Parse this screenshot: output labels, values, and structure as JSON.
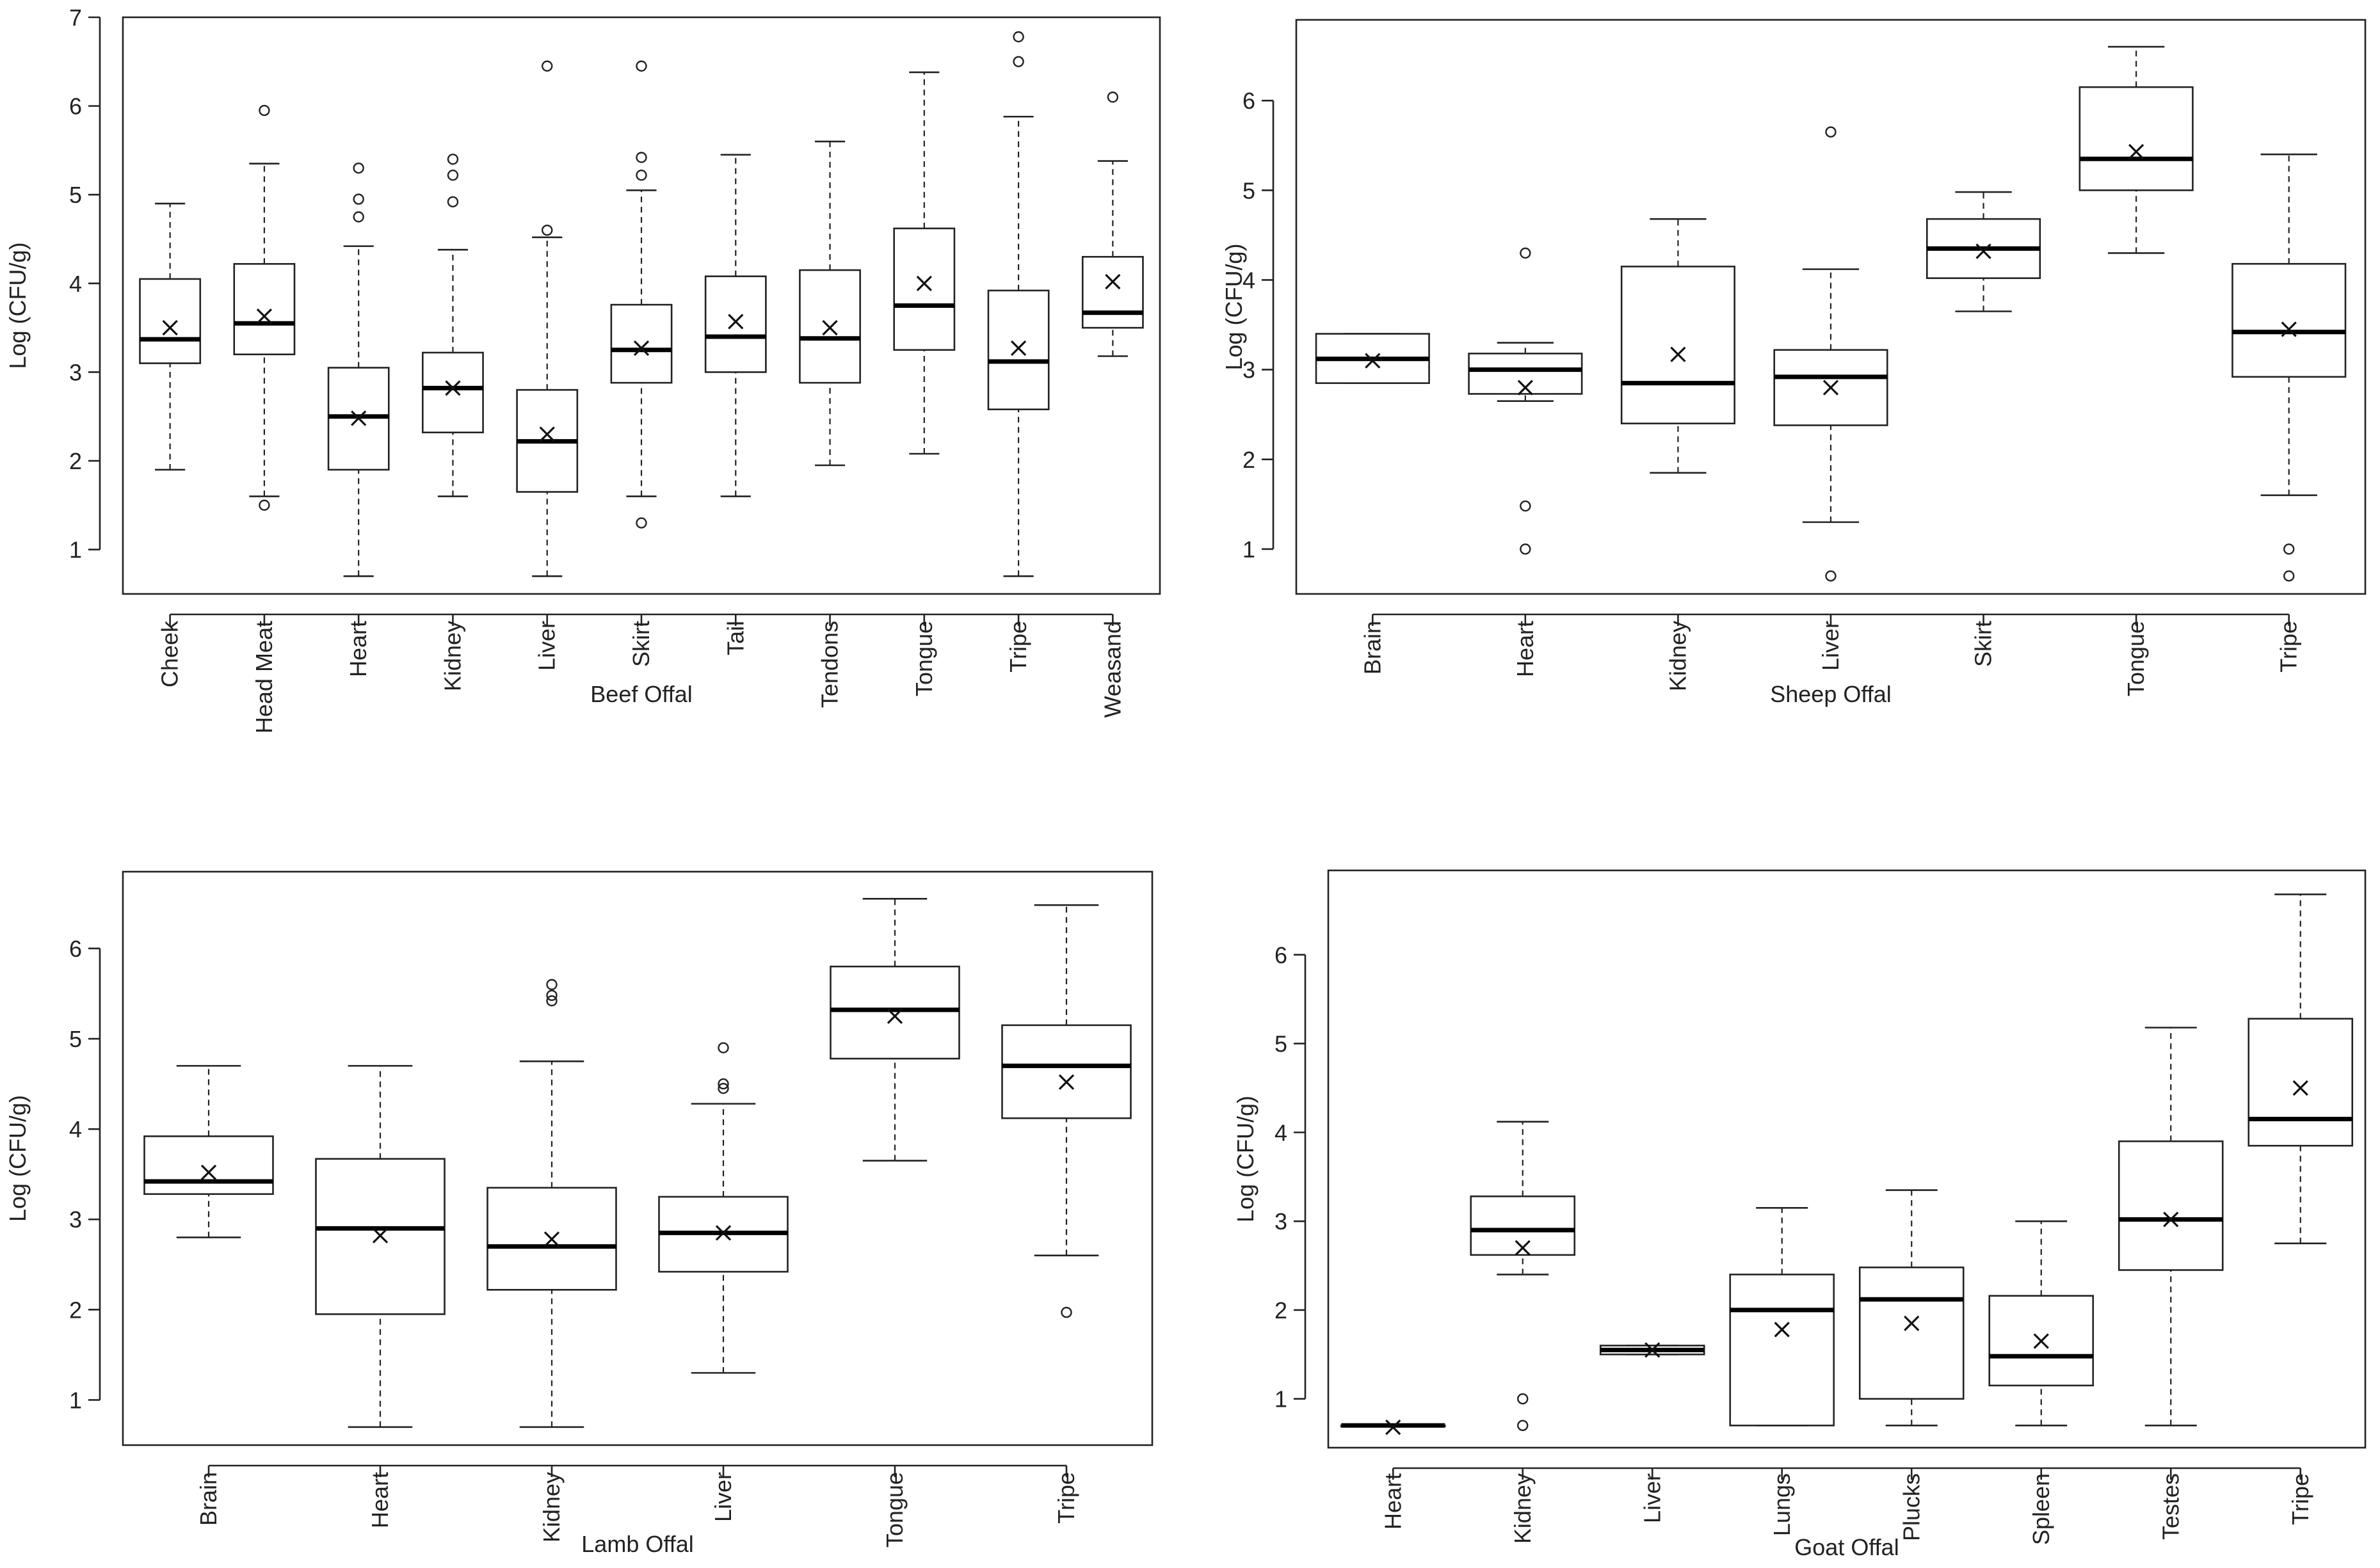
{
  "chart_data": [
    {
      "type": "box",
      "title": "",
      "xlabel": "Beef Offal",
      "ylabel": "Log (CFU/g)",
      "ylim": [
        0.5,
        7.0
      ],
      "yticks": [
        1,
        2,
        3,
        4,
        5,
        6,
        7
      ],
      "mean_marker": "X",
      "categories": [
        "Cheek",
        "Head Meat",
        "Heart",
        "Kidney",
        "Liver",
        "Skirt",
        "Tail",
        "Tendons",
        "Tongue",
        "Tripe",
        "Weasand"
      ],
      "boxes": [
        {
          "min": 1.9,
          "q1": 3.1,
          "median": 3.37,
          "q3": 4.05,
          "max": 4.9,
          "mean": 3.5,
          "outliers": []
        },
        {
          "min": 1.6,
          "q1": 3.2,
          "median": 3.55,
          "q3": 4.22,
          "max": 5.35,
          "mean": 3.63,
          "outliers": [
            5.95,
            1.5
          ]
        },
        {
          "min": 0.7,
          "q1": 1.9,
          "median": 2.5,
          "q3": 3.05,
          "max": 4.42,
          "mean": 2.48,
          "outliers": [
            5.3,
            4.95,
            4.75
          ]
        },
        {
          "min": 1.6,
          "q1": 2.32,
          "median": 2.82,
          "q3": 3.22,
          "max": 4.38,
          "mean": 2.82,
          "outliers": [
            5.4,
            5.22,
            4.92
          ]
        },
        {
          "min": 0.7,
          "q1": 1.65,
          "median": 2.22,
          "q3": 2.8,
          "max": 4.52,
          "mean": 2.3,
          "outliers": [
            6.45,
            4.6
          ]
        },
        {
          "min": 1.6,
          "q1": 2.88,
          "median": 3.25,
          "q3": 3.76,
          "max": 5.05,
          "mean": 3.27,
          "outliers": [
            6.45,
            5.42,
            5.22,
            1.3
          ]
        },
        {
          "min": 1.6,
          "q1": 3.0,
          "median": 3.4,
          "q3": 4.08,
          "max": 5.45,
          "mean": 3.57,
          "outliers": []
        },
        {
          "min": 1.95,
          "q1": 2.88,
          "median": 3.38,
          "q3": 4.15,
          "max": 5.6,
          "mean": 3.5,
          "outliers": []
        },
        {
          "min": 2.08,
          "q1": 3.25,
          "median": 3.75,
          "q3": 4.62,
          "max": 6.38,
          "mean": 4.0,
          "outliers": []
        },
        {
          "min": 0.7,
          "q1": 2.58,
          "median": 3.12,
          "q3": 3.92,
          "max": 5.88,
          "mean": 3.27,
          "outliers": [
            6.78,
            6.5
          ]
        },
        {
          "min": 3.18,
          "q1": 3.5,
          "median": 3.67,
          "q3": 4.3,
          "max": 5.38,
          "mean": 4.02,
          "outliers": [
            6.1
          ]
        }
      ]
    },
    {
      "type": "box",
      "title": "",
      "xlabel": "Sheep Offal",
      "ylabel": "Log (CFU/g)",
      "ylim": [
        0.5,
        6.9
      ],
      "yticks": [
        1,
        2,
        3,
        4,
        5,
        6
      ],
      "mean_marker": "X",
      "categories": [
        "Brain",
        "Heart",
        "Kidney",
        "Liver",
        "Skirt",
        "Tongue",
        "Tripe"
      ],
      "boxes": [
        {
          "min": 2.85,
          "q1": 2.85,
          "median": 3.12,
          "q3": 3.4,
          "max": 3.4,
          "mean": 3.1,
          "outliers": []
        },
        {
          "min": 2.65,
          "q1": 2.73,
          "median": 3.0,
          "q3": 3.18,
          "max": 3.3,
          "mean": 2.8,
          "outliers": [
            4.3,
            1.48,
            1.0
          ]
        },
        {
          "min": 1.85,
          "q1": 2.4,
          "median": 2.85,
          "q3": 4.15,
          "max": 4.68,
          "mean": 3.17,
          "outliers": []
        },
        {
          "min": 1.3,
          "q1": 2.38,
          "median": 2.92,
          "q3": 3.22,
          "max": 4.12,
          "mean": 2.8,
          "outliers": [
            5.65,
            0.7
          ]
        },
        {
          "min": 3.65,
          "q1": 4.02,
          "median": 4.35,
          "q3": 4.68,
          "max": 4.98,
          "mean": 4.32,
          "outliers": []
        },
        {
          "min": 4.3,
          "q1": 5.0,
          "median": 5.35,
          "q3": 6.15,
          "max": 6.6,
          "mean": 5.43,
          "outliers": []
        },
        {
          "min": 1.6,
          "q1": 2.92,
          "median": 3.42,
          "q3": 4.18,
          "max": 5.4,
          "mean": 3.45,
          "outliers": [
            1.0,
            0.7
          ]
        }
      ]
    },
    {
      "type": "box",
      "title": "",
      "xlabel": "Lamb Offal",
      "ylabel": "Log (CFU/g)",
      "ylim": [
        0.5,
        6.85
      ],
      "yticks": [
        1,
        2,
        3,
        4,
        5,
        6
      ],
      "mean_marker": "X",
      "categories": [
        "Brain",
        "Heart",
        "Kidney",
        "Liver",
        "Tongue",
        "Tripe"
      ],
      "boxes": [
        {
          "min": 2.8,
          "q1": 3.28,
          "median": 3.42,
          "q3": 3.92,
          "max": 4.7,
          "mean": 3.52,
          "outliers": []
        },
        {
          "min": 0.7,
          "q1": 1.95,
          "median": 2.9,
          "q3": 3.67,
          "max": 4.7,
          "mean": 2.82,
          "outliers": []
        },
        {
          "min": 0.7,
          "q1": 2.22,
          "median": 2.7,
          "q3": 3.35,
          "max": 4.75,
          "mean": 2.78,
          "outliers": [
            5.6,
            5.48,
            5.42
          ]
        },
        {
          "min": 1.3,
          "q1": 2.42,
          "median": 2.85,
          "q3": 3.25,
          "max": 4.28,
          "mean": 2.85,
          "outliers": [
            4.9,
            4.5,
            4.45
          ]
        },
        {
          "min": 3.65,
          "q1": 4.78,
          "median": 5.32,
          "q3": 5.8,
          "max": 6.55,
          "mean": 5.25,
          "outliers": []
        },
        {
          "min": 2.6,
          "q1": 4.12,
          "median": 4.7,
          "q3": 5.15,
          "max": 6.48,
          "mean": 4.52,
          "outliers": [
            1.97
          ]
        }
      ]
    },
    {
      "type": "box",
      "title": "",
      "xlabel": "Goat Offal",
      "ylabel": "Log (CFU/g)",
      "ylim": [
        0.45,
        6.95
      ],
      "yticks": [
        1,
        2,
        3,
        4,
        5,
        6
      ],
      "mean_marker": "X",
      "categories": [
        "Heart",
        "Kidney",
        "Liver",
        "Lungs",
        "Plucks",
        "Spleen",
        "Testes",
        "Tripe"
      ],
      "boxes": [
        {
          "min": 0.7,
          "q1": 0.7,
          "median": 0.7,
          "q3": 0.7,
          "max": 0.7,
          "mean": 0.68,
          "outliers": []
        },
        {
          "min": 2.4,
          "q1": 2.62,
          "median": 2.9,
          "q3": 3.28,
          "max": 4.12,
          "mean": 2.7,
          "outliers": [
            1.0,
            0.7
          ]
        },
        {
          "min": 1.5,
          "q1": 1.5,
          "median": 1.55,
          "q3": 1.6,
          "max": 1.6,
          "mean": 1.55,
          "outliers": []
        },
        {
          "min": 0.7,
          "q1": 0.7,
          "median": 2.0,
          "q3": 2.4,
          "max": 3.15,
          "mean": 1.78,
          "outliers": []
        },
        {
          "min": 0.7,
          "q1": 1.0,
          "median": 2.12,
          "q3": 2.48,
          "max": 3.35,
          "mean": 1.85,
          "outliers": []
        },
        {
          "min": 0.7,
          "q1": 1.15,
          "median": 1.48,
          "q3": 2.16,
          "max": 3.0,
          "mean": 1.65,
          "outliers": []
        },
        {
          "min": 0.7,
          "q1": 2.45,
          "median": 3.02,
          "q3": 3.9,
          "max": 5.18,
          "mean": 3.02,
          "outliers": []
        },
        {
          "min": 2.75,
          "q1": 3.85,
          "median": 4.15,
          "q3": 5.28,
          "max": 6.68,
          "mean": 4.5,
          "outliers": []
        }
      ]
    }
  ]
}
